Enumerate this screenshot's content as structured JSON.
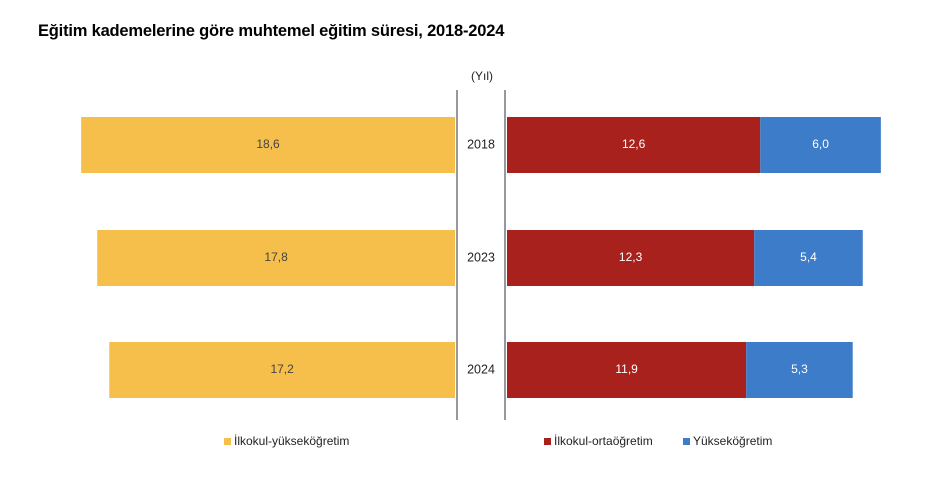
{
  "chart_data": {
    "type": "bar",
    "title": "Eğitim kademelerine göre muhtemel eğitim süresi, 2018-2024",
    "axis_unit_label": "(Yıl)",
    "categories": [
      "2018",
      "2023",
      "2024"
    ],
    "left_panel": {
      "series": [
        {
          "name": "İlkokul-yükseköğretim",
          "values": [
            18.6,
            17.8,
            17.2
          ],
          "labels": [
            "18,6",
            "17,8",
            "17,2"
          ],
          "color": "#F6BE4A"
        }
      ]
    },
    "right_panel": {
      "stacked": true,
      "series": [
        {
          "name": "İlkokul-ortaöğretim",
          "values": [
            12.6,
            12.3,
            11.9
          ],
          "labels": [
            "12,6",
            "12,3",
            "11,9"
          ],
          "color": "#A8211C"
        },
        {
          "name": "Yükseköğretim",
          "values": [
            6.0,
            5.4,
            5.3
          ],
          "labels": [
            "6,0",
            "5,4",
            "5,3"
          ],
          "color": "#3D7CC9"
        }
      ]
    },
    "legend": {
      "left": [
        "İlkokul-yükseköğretim"
      ],
      "right": [
        "İlkokul-ortaöğretim",
        "Yükseköğretim"
      ],
      "position": "bottom"
    },
    "grid": false
  }
}
